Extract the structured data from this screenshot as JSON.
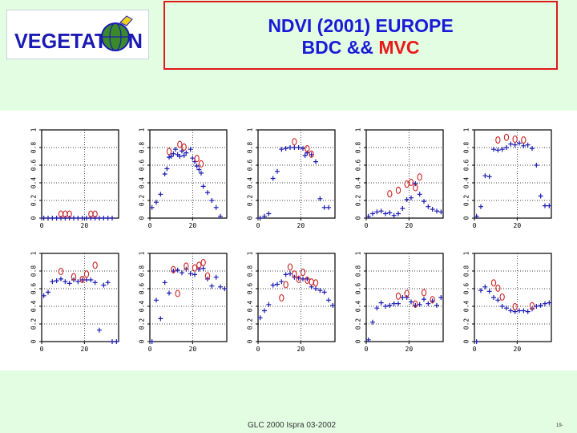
{
  "header": {
    "logo_text": "VEGETATION",
    "title_line1": "NDVI (2001) EUROPE",
    "title_line2_prefix": "BDC &&",
    "title_line2_highlight": "MVC"
  },
  "footer": {
    "text": "GLC 2000 Ispra 03-2002",
    "page_number": "19-"
  },
  "colors": {
    "bdc": "#1a1ab4",
    "mvc": "#cc2222",
    "title_blue": "#1a1ad8",
    "title_red": "#e81a1a",
    "background": "#e3fde3"
  },
  "chart_data": [
    {
      "type": "scatter",
      "panel": "row1-col1",
      "xlim": [
        0,
        36
      ],
      "ylim": [
        0,
        1
      ],
      "yticks": [
        "0",
        "0.2",
        "0.4",
        "0.6",
        "0.8",
        "1"
      ],
      "xticks": [
        "0",
        "20"
      ],
      "series": [
        {
          "name": "BDC",
          "marker": "+",
          "x": [
            1,
            3,
            5,
            7,
            9,
            11,
            13,
            15,
            17,
            19,
            21,
            23,
            25,
            27,
            29,
            31,
            33
          ],
          "y": [
            0,
            0,
            0,
            0,
            0,
            0,
            0,
            0,
            0,
            0,
            0,
            0,
            0,
            0,
            0,
            0,
            0
          ]
        },
        {
          "name": "MVC",
          "marker": "o",
          "x": [
            9,
            11,
            13,
            23,
            25
          ],
          "y": [
            0,
            0,
            0,
            0,
            0
          ]
        }
      ]
    },
    {
      "type": "scatter",
      "panel": "row1-col2",
      "xlim": [
        0,
        36
      ],
      "ylim": [
        0,
        1
      ],
      "yticks": [
        "0",
        "0.2",
        "0.4",
        "0.6",
        "0.8",
        "1"
      ],
      "xticks": [
        "0",
        "20"
      ],
      "series": [
        {
          "name": "BDC",
          "marker": "+",
          "x": [
            1,
            3,
            5,
            7,
            8,
            9,
            10,
            11,
            12,
            13,
            14,
            15,
            16,
            17,
            19,
            20,
            21,
            22,
            23,
            24,
            25,
            27,
            29,
            31,
            33
          ],
          "y": [
            0.12,
            0.18,
            0.27,
            0.5,
            0.56,
            0.69,
            0.7,
            0.73,
            0.78,
            0.72,
            0.7,
            0.76,
            0.71,
            0.74,
            0.78,
            0.68,
            0.64,
            0.59,
            0.55,
            0.51,
            0.36,
            0.29,
            0.2,
            0.12,
            0.02
          ]
        },
        {
          "name": "MVC",
          "marker": "o",
          "x": [
            9,
            14,
            16,
            22,
            24
          ],
          "y": [
            0.71,
            0.79,
            0.76,
            0.63,
            0.57
          ]
        }
      ]
    },
    {
      "type": "scatter",
      "panel": "row1-col3",
      "xlim": [
        0,
        36
      ],
      "ylim": [
        0,
        1
      ],
      "yticks": [
        "0",
        "0.2",
        "0.4",
        "0.6",
        "0.8",
        "1"
      ],
      "xticks": [
        "0",
        "20"
      ],
      "series": [
        {
          "name": "BDC",
          "marker": "+",
          "x": [
            1,
            3,
            5,
            7,
            9,
            11,
            13,
            15,
            17,
            19,
            21,
            22,
            23,
            25,
            27,
            29,
            31,
            33
          ],
          "y": [
            0.0,
            0.02,
            0.05,
            0.45,
            0.53,
            0.78,
            0.79,
            0.8,
            0.8,
            0.8,
            0.79,
            0.71,
            0.74,
            0.72,
            0.64,
            0.22,
            0.12,
            0.12
          ]
        },
        {
          "name": "MVC",
          "marker": "o",
          "x": [
            17,
            23,
            25
          ],
          "y": [
            0.82,
            0.74,
            0.68
          ]
        }
      ]
    },
    {
      "type": "scatter",
      "panel": "row1-col4",
      "xlim": [
        0,
        36
      ],
      "ylim": [
        0,
        1
      ],
      "yticks": [
        "0",
        "0.2",
        "0.4",
        "0.6",
        "0.8",
        "1"
      ],
      "xticks": [
        "0",
        "20"
      ],
      "series": [
        {
          "name": "BDC",
          "marker": "+",
          "x": [
            1,
            3,
            5,
            7,
            9,
            11,
            13,
            15,
            17,
            19,
            21,
            23,
            25,
            27,
            29,
            31,
            33,
            35
          ],
          "y": [
            0.02,
            0.05,
            0.07,
            0.08,
            0.05,
            0.06,
            0.03,
            0.05,
            0.11,
            0.21,
            0.23,
            0.39,
            0.27,
            0.19,
            0.13,
            0.1,
            0.08,
            0.07
          ]
        },
        {
          "name": "MVC",
          "marker": "o",
          "x": [
            11,
            15,
            19,
            21,
            23,
            25
          ],
          "y": [
            0.23,
            0.27,
            0.34,
            0.36,
            0.3,
            0.42
          ]
        }
      ]
    },
    {
      "type": "scatter",
      "panel": "row1-col5",
      "xlim": [
        0,
        36
      ],
      "ylim": [
        0,
        1
      ],
      "yticks": [
        "0",
        "0.2",
        "0.4",
        "0.6",
        "0.8",
        "1"
      ],
      "xticks": [
        "0",
        "20"
      ],
      "series": [
        {
          "name": "BDC",
          "marker": "+",
          "x": [
            1,
            3,
            5,
            7,
            9,
            11,
            13,
            15,
            17,
            19,
            21,
            23,
            25,
            27,
            29,
            31,
            33,
            35
          ],
          "y": [
            0.02,
            0.13,
            0.48,
            0.47,
            0.78,
            0.77,
            0.78,
            0.8,
            0.84,
            0.83,
            0.85,
            0.82,
            0.83,
            0.79,
            0.6,
            0.25,
            0.14,
            0.14
          ]
        },
        {
          "name": "MVC",
          "marker": "o",
          "x": [
            11,
            15,
            19,
            23
          ],
          "y": [
            0.84,
            0.87,
            0.85,
            0.84
          ]
        }
      ]
    },
    {
      "type": "scatter",
      "panel": "row2-col1",
      "xlim": [
        0,
        36
      ],
      "ylim": [
        0,
        1
      ],
      "yticks": [
        "0",
        "0.2",
        "0.4",
        "0.6",
        "0.8",
        "1"
      ],
      "xticks": [
        "0",
        "20"
      ],
      "series": [
        {
          "name": "BDC",
          "marker": "+",
          "x": [
            1,
            3,
            5,
            7,
            9,
            11,
            13,
            15,
            17,
            19,
            21,
            23,
            25,
            27,
            29,
            31,
            33,
            35
          ],
          "y": [
            0.52,
            0.56,
            0.68,
            0.69,
            0.71,
            0.68,
            0.66,
            0.7,
            0.68,
            0.7,
            0.7,
            0.7,
            0.67,
            0.13,
            0.64,
            0.67,
            0.0,
            0.0
          ]
        },
        {
          "name": "MVC",
          "marker": "o",
          "x": [
            9,
            15,
            19,
            21,
            25
          ],
          "y": [
            0.75,
            0.69,
            0.66,
            0.72,
            0.82
          ]
        }
      ]
    },
    {
      "type": "scatter",
      "panel": "row2-col2",
      "xlim": [
        0,
        36
      ],
      "ylim": [
        0,
        1
      ],
      "yticks": [
        "0",
        "0.2",
        "0.4",
        "0.6",
        "0.8",
        "1"
      ],
      "xticks": [
        "0",
        "20"
      ],
      "series": [
        {
          "name": "BDC",
          "marker": "+",
          "x": [
            1,
            3,
            5,
            7,
            9,
            11,
            13,
            15,
            17,
            19,
            21,
            23,
            25,
            27,
            29,
            31,
            33,
            35
          ],
          "y": [
            0.0,
            0.47,
            0.26,
            0.67,
            0.55,
            0.8,
            0.81,
            0.78,
            0.82,
            0.77,
            0.76,
            0.82,
            0.83,
            0.71,
            0.63,
            0.73,
            0.62,
            0.6
          ]
        },
        {
          "name": "MVC",
          "marker": "o",
          "x": [
            11,
            13,
            17,
            21,
            23,
            25,
            27
          ],
          "y": [
            0.77,
            0.5,
            0.81,
            0.79,
            0.82,
            0.85,
            0.7
          ]
        }
      ]
    },
    {
      "type": "scatter",
      "panel": "row2-col3",
      "xlim": [
        0,
        36
      ],
      "ylim": [
        0,
        1
      ],
      "yticks": [
        "0",
        "0.2",
        "0.4",
        "0.6",
        "0.8",
        "1"
      ],
      "xticks": [
        "0",
        "20"
      ],
      "series": [
        {
          "name": "BDC",
          "marker": "+",
          "x": [
            1,
            3,
            5,
            7,
            9,
            11,
            13,
            15,
            17,
            19,
            21,
            23,
            25,
            27,
            29,
            31,
            33,
            35
          ],
          "y": [
            0.27,
            0.35,
            0.42,
            0.64,
            0.65,
            0.68,
            0.76,
            0.77,
            0.73,
            0.72,
            0.71,
            0.71,
            0.62,
            0.6,
            0.58,
            0.56,
            0.47,
            0.41
          ]
        },
        {
          "name": "MVC",
          "marker": "o",
          "x": [
            11,
            13,
            15,
            17,
            19,
            21,
            23,
            25,
            27
          ],
          "y": [
            0.45,
            0.6,
            0.8,
            0.72,
            0.66,
            0.74,
            0.65,
            0.63,
            0.62
          ]
        }
      ]
    },
    {
      "type": "scatter",
      "panel": "row2-col4",
      "xlim": [
        0,
        36
      ],
      "ylim": [
        0,
        1
      ],
      "yticks": [
        "0",
        "0.2",
        "0.4",
        "0.6",
        "0.8",
        "1"
      ],
      "xticks": [
        "0",
        "20"
      ],
      "series": [
        {
          "name": "BDC",
          "marker": "+",
          "x": [
            1,
            3,
            5,
            7,
            9,
            11,
            13,
            15,
            17,
            19,
            21,
            23,
            25,
            27,
            29,
            31,
            33,
            35
          ],
          "y": [
            0.02,
            0.22,
            0.38,
            0.44,
            0.4,
            0.41,
            0.43,
            0.43,
            0.5,
            0.5,
            0.45,
            0.41,
            0.42,
            0.48,
            0.43,
            0.46,
            0.41,
            0.5
          ]
        },
        {
          "name": "MVC",
          "marker": "o",
          "x": [
            15,
            19,
            23,
            27,
            31
          ],
          "y": [
            0.47,
            0.5,
            0.38,
            0.51,
            0.43
          ]
        }
      ]
    },
    {
      "type": "scatter",
      "panel": "row2-col5",
      "xlim": [
        0,
        36
      ],
      "ylim": [
        0,
        1
      ],
      "yticks": [
        "0",
        "0.2",
        "0.4",
        "0.6",
        "0.8",
        "1"
      ],
      "xticks": [
        "0",
        "20"
      ],
      "series": [
        {
          "name": "BDC",
          "marker": "+",
          "x": [
            1,
            3,
            5,
            7,
            9,
            11,
            13,
            15,
            17,
            19,
            21,
            23,
            25,
            27,
            29,
            31,
            33,
            35
          ],
          "y": [
            0.0,
            0.58,
            0.62,
            0.57,
            0.5,
            0.47,
            0.4,
            0.38,
            0.35,
            0.34,
            0.35,
            0.35,
            0.34,
            0.37,
            0.4,
            0.41,
            0.43,
            0.44
          ]
        },
        {
          "name": "MVC",
          "marker": "o",
          "x": [
            9,
            11,
            13,
            19,
            27
          ],
          "y": [
            0.62,
            0.56,
            0.46,
            0.35,
            0.36
          ]
        }
      ]
    }
  ]
}
